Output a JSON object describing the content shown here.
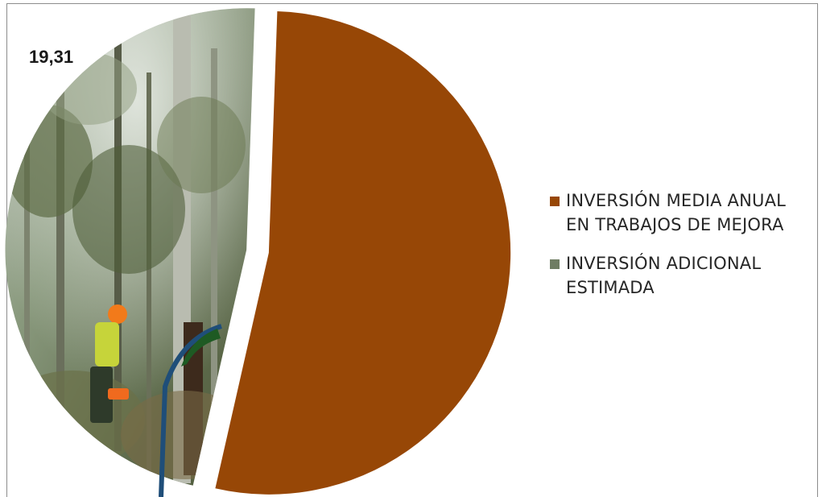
{
  "chart_data": {
    "type": "pie",
    "title": "",
    "series": [
      {
        "name": "INVERSIÓN MEDIA ANUAL EN TRABAJOS DE MEJORA",
        "value": null,
        "color": "#974706"
      },
      {
        "name": "INVERSIÓN ADICIONAL ESTIMADA",
        "value": 19.31,
        "value_label": "19,31",
        "color": "#77876b",
        "fill": "photograph"
      }
    ],
    "slice_fractions": [
      0.53,
      0.47
    ],
    "exploded": true,
    "legend_position": "right"
  },
  "legend": [
    {
      "label_line1": "INVERSIÓN MEDIA ANUAL",
      "label_line2": "EN TRABAJOS DE MEJORA",
      "color": "#974706"
    },
    {
      "label_line1": "INVERSIÓN ADICIONAL",
      "label_line2": "ESTIMADA",
      "color": "#6f7d63"
    }
  ],
  "data_labels": {
    "additional": "19,31"
  }
}
